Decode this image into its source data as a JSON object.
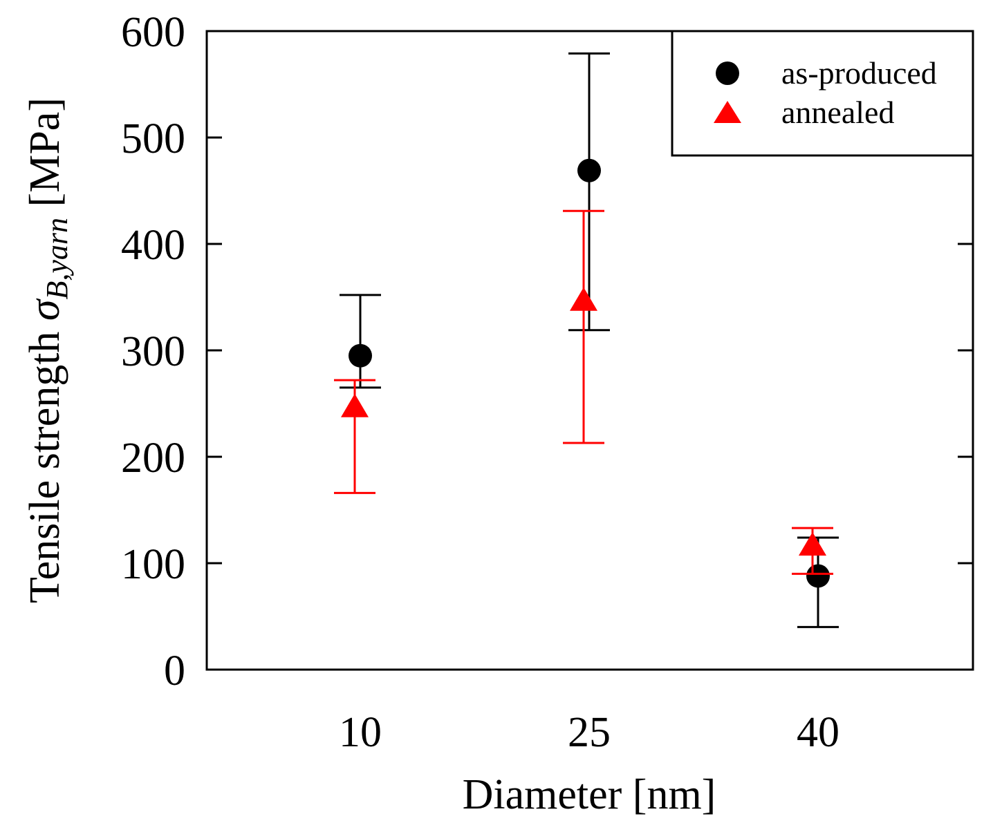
{
  "chart_data": {
    "type": "scatter",
    "title": "",
    "xlabel": "Diameter [nm]",
    "ylabel": {
      "prefix": "Tensile strength ",
      "symbol": "σ",
      "subscript": "B,yarn",
      "unit": " [MPa]"
    },
    "categories": [
      "10",
      "25",
      "40"
    ],
    "ylim": [
      0,
      600
    ],
    "yticks": [
      "0",
      "100",
      "200",
      "300",
      "400",
      "500",
      "600"
    ],
    "legend_position": "top-right",
    "grid": false,
    "series": [
      {
        "name": "as-produced",
        "marker": "circle",
        "color": "#000000",
        "values": [
          295,
          469,
          88
        ],
        "error_low": [
          265,
          319,
          40
        ],
        "error_high": [
          352,
          579,
          124
        ]
      },
      {
        "name": "annealed",
        "marker": "triangle",
        "color": "#ff0000",
        "values": [
          246,
          346,
          116
        ],
        "error_low": [
          166,
          213,
          90
        ],
        "error_high": [
          272,
          431,
          133
        ]
      }
    ]
  }
}
